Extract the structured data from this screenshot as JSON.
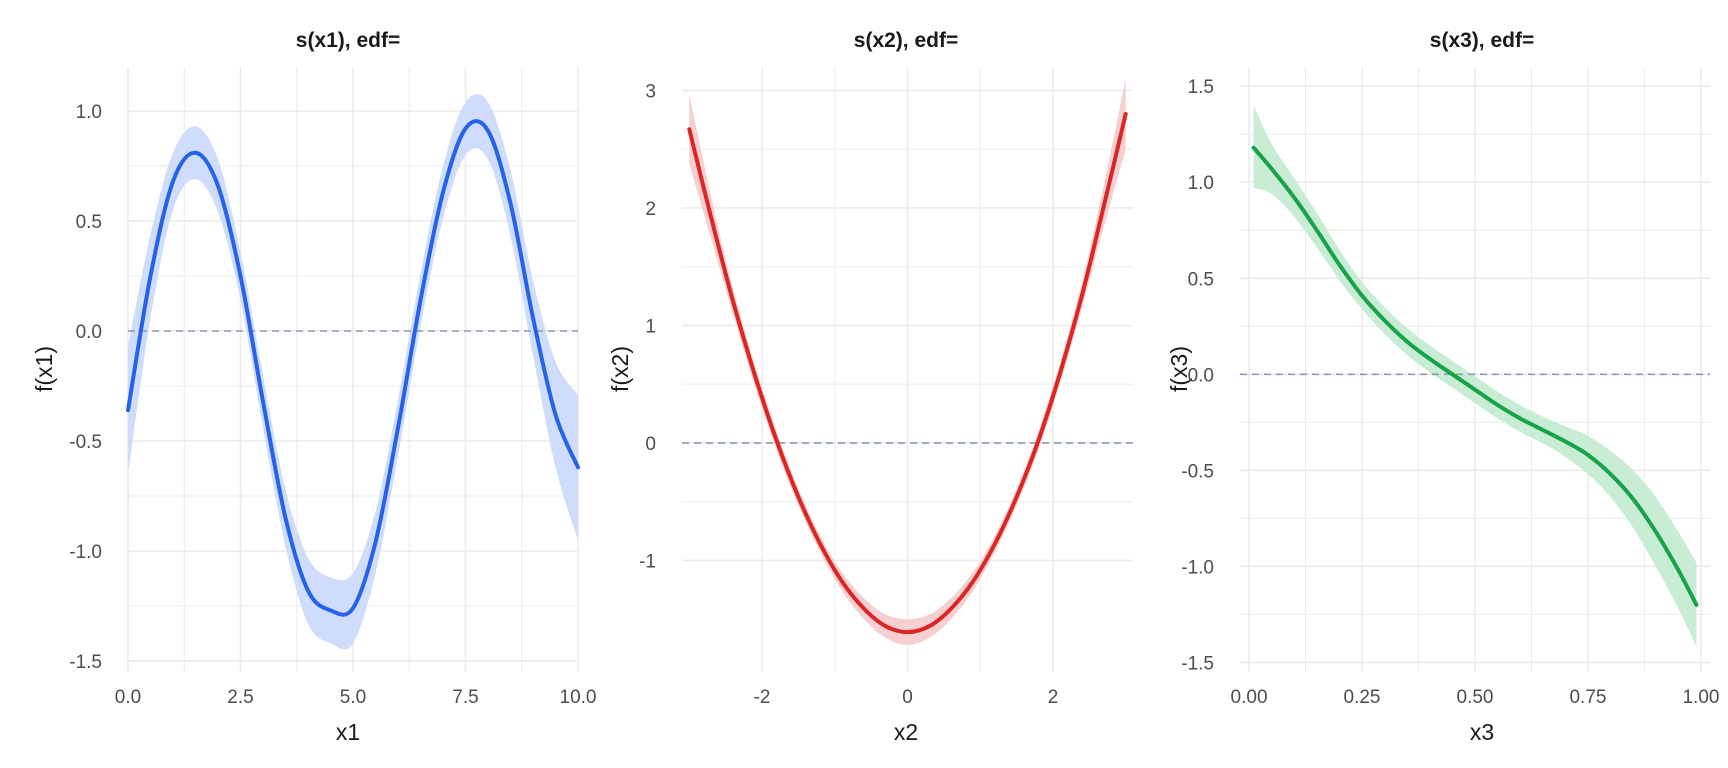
{
  "colors": {
    "grid": "#ebebeb",
    "zero_line": "#8c9bb1",
    "series": [
      "#2563eb",
      "#dc2626",
      "#16a34a"
    ],
    "bands": [
      "#cfdcfb",
      "#f6d0d0",
      "#c9ecd4"
    ]
  },
  "chart_data": [
    {
      "type": "line",
      "title": "s(x1), edf=",
      "xlabel": "x1",
      "ylabel": "f(x1)",
      "xlim": [
        0,
        10
      ],
      "ylim": [
        -1.55,
        1.2
      ],
      "xticks": [
        0,
        2.5,
        5,
        7.5,
        10
      ],
      "xtick_labels": [
        "0.0",
        "2.5",
        "5.0",
        "7.5",
        "10.0"
      ],
      "yticks": [
        -1.5,
        -1.0,
        -0.5,
        0.0,
        0.5,
        1.0
      ],
      "ytick_labels": [
        "-1.5",
        "-1.0",
        "-0.5",
        "0.0",
        "0.5",
        "1.0"
      ],
      "grid": true,
      "reference_line_y": 0,
      "x": [
        0,
        0.5,
        1.0,
        1.5,
        2.0,
        2.5,
        3.0,
        3.5,
        4.0,
        4.5,
        5.0,
        5.5,
        6.0,
        6.5,
        7.0,
        7.5,
        8.0,
        8.5,
        9.0,
        9.5,
        10.0
      ],
      "y": [
        -0.36,
        0.25,
        0.68,
        0.81,
        0.66,
        0.25,
        -0.32,
        -0.85,
        -1.18,
        -1.27,
        -1.26,
        -0.96,
        -0.44,
        0.14,
        0.63,
        0.92,
        0.91,
        0.58,
        0.06,
        -0.38,
        -0.62
      ],
      "lower": [
        -0.65,
        0.06,
        0.55,
        0.69,
        0.54,
        0.14,
        -0.44,
        -0.98,
        -1.33,
        -1.42,
        -1.42,
        -1.1,
        -0.57,
        0.02,
        0.51,
        0.8,
        0.78,
        0.43,
        -0.11,
        -0.62,
        -0.95
      ],
      "upper": [
        -0.07,
        0.44,
        0.81,
        0.93,
        0.78,
        0.36,
        -0.2,
        -0.72,
        -1.03,
        -1.12,
        -1.1,
        -0.82,
        -0.31,
        0.26,
        0.75,
        1.04,
        1.04,
        0.73,
        0.23,
        -0.14,
        -0.29
      ]
    },
    {
      "type": "line",
      "title": "s(x2), edf=",
      "xlabel": "x2",
      "ylabel": "f(x2)",
      "xlim": [
        -3.1,
        3.1
      ],
      "ylim": [
        -1.95,
        3.2
      ],
      "xticks": [
        -2,
        0,
        2
      ],
      "xtick_labels": [
        "-2",
        "0",
        "2"
      ],
      "yticks": [
        -1,
        0,
        1,
        2,
        3
      ],
      "ytick_labels": [
        "-1",
        "0",
        "1",
        "2",
        "3"
      ],
      "grid": true,
      "reference_line_y": 0,
      "x": [
        -3.0,
        -2.7,
        -2.4,
        -2.1,
        -1.8,
        -1.5,
        -1.2,
        -0.9,
        -0.6,
        -0.3,
        0.0,
        0.3,
        0.6,
        0.9,
        1.2,
        1.5,
        1.8,
        2.1,
        2.4,
        2.7,
        3.0
      ],
      "y": [
        2.67,
        1.92,
        1.21,
        0.58,
        0.02,
        -0.46,
        -0.86,
        -1.18,
        -1.41,
        -1.56,
        -1.61,
        -1.56,
        -1.41,
        -1.18,
        -0.86,
        -0.46,
        0.02,
        0.6,
        1.26,
        2.02,
        2.8
      ],
      "lower": [
        2.37,
        1.74,
        1.1,
        0.49,
        -0.06,
        -0.53,
        -0.93,
        -1.26,
        -1.5,
        -1.66,
        -1.72,
        -1.66,
        -1.5,
        -1.26,
        -0.93,
        -0.53,
        -0.06,
        0.51,
        1.15,
        1.84,
        2.5
      ],
      "upper": [
        2.97,
        2.1,
        1.32,
        0.67,
        0.1,
        -0.39,
        -0.79,
        -1.1,
        -1.32,
        -1.46,
        -1.5,
        -1.46,
        -1.32,
        -1.1,
        -0.79,
        -0.39,
        0.1,
        0.69,
        1.37,
        2.2,
        3.1
      ]
    },
    {
      "type": "line",
      "title": "s(x3), edf=",
      "xlabel": "x3",
      "ylabel": "f(x3)",
      "xlim": [
        -0.02,
        1.02
      ],
      "ylim": [
        -1.55,
        1.6
      ],
      "xticks": [
        0,
        0.25,
        0.5,
        0.75,
        1.0
      ],
      "xtick_labels": [
        "0.00",
        "0.25",
        "0.50",
        "0.75",
        "1.00"
      ],
      "yticks": [
        -1.5,
        -1.0,
        -0.5,
        0.0,
        0.5,
        1.0,
        1.5
      ],
      "ytick_labels": [
        "-1.5",
        "-1.0",
        "-0.5",
        "0.0",
        "0.5",
        "1.0",
        "1.5"
      ],
      "grid": true,
      "reference_line_y": 0,
      "x": [
        0.01,
        0.05,
        0.1,
        0.15,
        0.2,
        0.25,
        0.3,
        0.35,
        0.4,
        0.45,
        0.5,
        0.55,
        0.6,
        0.65,
        0.7,
        0.75,
        0.8,
        0.85,
        0.9,
        0.95,
        0.99
      ],
      "y": [
        1.18,
        1.07,
        0.92,
        0.75,
        0.57,
        0.41,
        0.28,
        0.17,
        0.08,
        0.0,
        -0.08,
        -0.16,
        -0.23,
        -0.29,
        -0.35,
        -0.42,
        -0.52,
        -0.65,
        -0.82,
        -1.02,
        -1.2
      ],
      "lower": [
        0.97,
        0.94,
        0.82,
        0.66,
        0.49,
        0.34,
        0.21,
        0.1,
        0.01,
        -0.07,
        -0.15,
        -0.23,
        -0.3,
        -0.36,
        -0.43,
        -0.52,
        -0.64,
        -0.8,
        -1.0,
        -1.22,
        -1.42
      ],
      "upper": [
        1.4,
        1.2,
        1.02,
        0.84,
        0.65,
        0.48,
        0.35,
        0.24,
        0.15,
        0.07,
        -0.01,
        -0.09,
        -0.16,
        -0.22,
        -0.27,
        -0.32,
        -0.4,
        -0.5,
        -0.64,
        -0.82,
        -0.98
      ]
    }
  ]
}
